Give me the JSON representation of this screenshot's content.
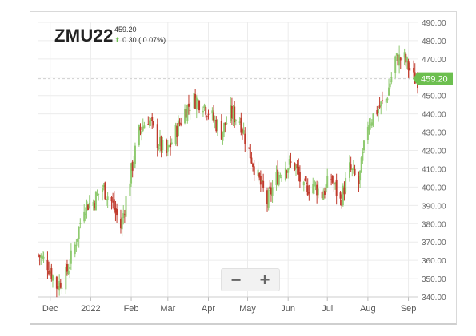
{
  "header": {
    "symbol": "ZMU22",
    "last_price": "459.20",
    "change_text": "0.30 ( 0.07%)",
    "change_icon": "up-arrow-icon"
  },
  "controls": {
    "zoom_out": "−",
    "zoom_in": "+"
  },
  "colors": {
    "up": "#8fca70",
    "down": "#c0392b",
    "badge": "#6cbf4f",
    "grid": "#ececec"
  },
  "chart_data": {
    "type": "candlestick",
    "title": "ZMU22",
    "y_range": [
      340,
      490
    ],
    "y_ticks": [
      "340.00",
      "350.00",
      "360.00",
      "370.00",
      "380.00",
      "390.00",
      "400.00",
      "410.00",
      "420.00",
      "430.00",
      "440.00",
      "450.00",
      "460.00",
      "470.00",
      "480.00",
      "490.00"
    ],
    "x_range": [
      "2021-11-22",
      "2022-09-08"
    ],
    "x_ticks": [
      {
        "label": "Dec",
        "date": "2021-12-01"
      },
      {
        "label": "2022",
        "date": "2022-01-01"
      },
      {
        "label": "Feb",
        "date": "2022-02-01"
      },
      {
        "label": "Mar",
        "date": "2022-03-01"
      },
      {
        "label": "Apr",
        "date": "2022-04-01"
      },
      {
        "label": "May",
        "date": "2022-05-01"
      },
      {
        "label": "Jun",
        "date": "2022-06-01"
      },
      {
        "label": "Jul",
        "date": "2022-07-01"
      },
      {
        "label": "Aug",
        "date": "2022-08-01"
      },
      {
        "label": "Sep",
        "date": "2022-09-01"
      }
    ],
    "last_value": 459.2,
    "last_label": "459.20",
    "closes": [
      {
        "date": "2021-11-22",
        "close": 363
      },
      {
        "date": "2021-11-29",
        "close": 358
      },
      {
        "date": "2021-12-06",
        "close": 346
      },
      {
        "date": "2021-12-13",
        "close": 352
      },
      {
        "date": "2021-12-20",
        "close": 368
      },
      {
        "date": "2021-12-27",
        "close": 390
      },
      {
        "date": "2022-01-03",
        "close": 392
      },
      {
        "date": "2022-01-10",
        "close": 400
      },
      {
        "date": "2022-01-17",
        "close": 392
      },
      {
        "date": "2022-01-24",
        "close": 378
      },
      {
        "date": "2022-01-31",
        "close": 405
      },
      {
        "date": "2022-02-07",
        "close": 430
      },
      {
        "date": "2022-02-14",
        "close": 438
      },
      {
        "date": "2022-02-21",
        "close": 425
      },
      {
        "date": "2022-02-28",
        "close": 418
      },
      {
        "date": "2022-03-07",
        "close": 430
      },
      {
        "date": "2022-03-14",
        "close": 442
      },
      {
        "date": "2022-03-21",
        "close": 448
      },
      {
        "date": "2022-03-28",
        "close": 446
      },
      {
        "date": "2022-04-04",
        "close": 438
      },
      {
        "date": "2022-04-11",
        "close": 430
      },
      {
        "date": "2022-04-18",
        "close": 440
      },
      {
        "date": "2022-04-25",
        "close": 437
      },
      {
        "date": "2022-05-02",
        "close": 420
      },
      {
        "date": "2022-05-09",
        "close": 405
      },
      {
        "date": "2022-05-16",
        "close": 392
      },
      {
        "date": "2022-05-23",
        "close": 405
      },
      {
        "date": "2022-05-30",
        "close": 412
      },
      {
        "date": "2022-06-06",
        "close": 412
      },
      {
        "date": "2022-06-13",
        "close": 398
      },
      {
        "date": "2022-06-20",
        "close": 402
      },
      {
        "date": "2022-06-27",
        "close": 396
      },
      {
        "date": "2022-07-04",
        "close": 405
      },
      {
        "date": "2022-07-11",
        "close": 392
      },
      {
        "date": "2022-07-18",
        "close": 410
      },
      {
        "date": "2022-07-25",
        "close": 402
      },
      {
        "date": "2022-08-01",
        "close": 435
      },
      {
        "date": "2022-08-08",
        "close": 442
      },
      {
        "date": "2022-08-15",
        "close": 448
      },
      {
        "date": "2022-08-22",
        "close": 470
      },
      {
        "date": "2022-08-29",
        "close": 470
      },
      {
        "date": "2022-09-05",
        "close": 459.2
      }
    ]
  }
}
